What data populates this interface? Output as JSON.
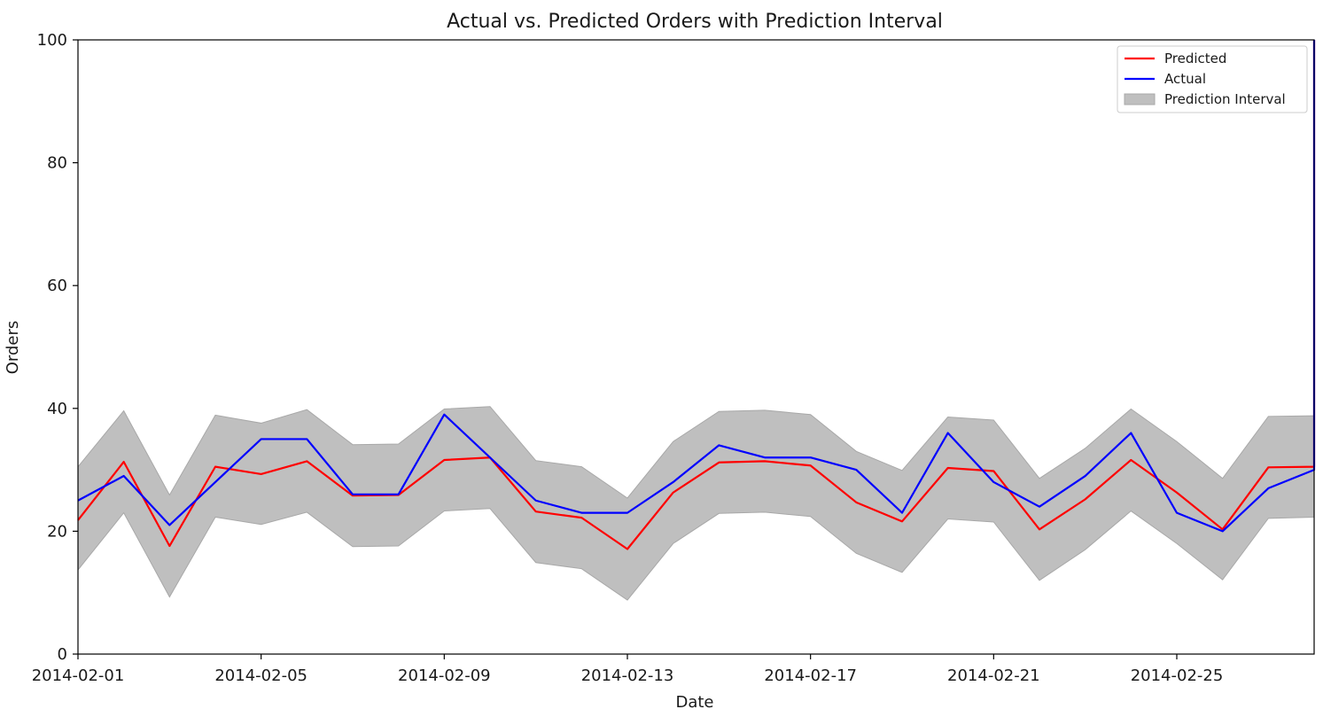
{
  "chart_data": {
    "type": "line",
    "title": "Actual vs. Predicted Orders with Prediction Interval",
    "xlabel": "Date",
    "ylabel": "Orders",
    "x_type": "date",
    "xlim": [
      "2014-02-01",
      "2014-02-28"
    ],
    "ylim": [
      0,
      100
    ],
    "x_ticks": [
      "2014-02-01",
      "2014-02-05",
      "2014-02-09",
      "2014-02-13",
      "2014-02-17",
      "2014-02-21",
      "2014-02-25"
    ],
    "y_ticks": [
      0,
      20,
      40,
      60,
      80,
      100
    ],
    "grid": false,
    "legend_position": "top-right",
    "x": [
      "2014-02-01",
      "2014-02-02",
      "2014-02-03",
      "2014-02-04",
      "2014-02-05",
      "2014-02-06",
      "2014-02-07",
      "2014-02-08",
      "2014-02-09",
      "2014-02-10",
      "2014-02-11",
      "2014-02-12",
      "2014-02-13",
      "2014-02-14",
      "2014-02-15",
      "2014-02-16",
      "2014-02-17",
      "2014-02-18",
      "2014-02-19",
      "2014-02-20",
      "2014-02-21",
      "2014-02-22",
      "2014-02-23",
      "2014-02-24",
      "2014-02-25",
      "2014-02-26",
      "2014-02-27",
      "2014-02-28"
    ],
    "series": [
      {
        "name": "Predicted",
        "color": "#ff0000",
        "values": [
          21.8,
          31.3,
          17.6,
          30.5,
          29.3,
          31.4,
          25.8,
          25.9,
          31.6,
          32.0,
          23.2,
          22.2,
          17.1,
          26.3,
          31.2,
          31.4,
          30.7,
          24.7,
          21.6,
          30.3,
          29.8,
          20.3,
          25.2,
          31.6,
          26.3,
          20.3,
          30.4,
          30.5
        ]
      },
      {
        "name": "Actual",
        "color": "#0000ff",
        "values": [
          25,
          29,
          21,
          28,
          35,
          35,
          26,
          26,
          39,
          32,
          25,
          23,
          23,
          28,
          34,
          32,
          32,
          30,
          23,
          36,
          28,
          24,
          29,
          36,
          23,
          20,
          27,
          30
        ]
      }
    ],
    "interval": {
      "name": "Prediction Interval",
      "color": "#bfbfbf",
      "lower": [
        13.7,
        23.0,
        9.3,
        22.3,
        21.1,
        23.1,
        17.5,
        17.6,
        23.3,
        23.7,
        14.9,
        13.9,
        8.8,
        18.0,
        22.9,
        23.1,
        22.4,
        16.4,
        13.3,
        22.0,
        21.5,
        12.0,
        17.0,
        23.3,
        18.0,
        12.1,
        22.1,
        22.3
      ],
      "upper": [
        30.5,
        39.6,
        25.9,
        38.9,
        37.6,
        39.8,
        34.1,
        34.2,
        39.9,
        40.3,
        31.5,
        30.5,
        25.4,
        34.6,
        39.5,
        39.7,
        39.0,
        33.0,
        29.9,
        38.6,
        38.1,
        28.6,
        33.5,
        39.9,
        34.6,
        28.6,
        38.7,
        38.8
      ]
    },
    "end_spike": {
      "Predicted": 100,
      "Actual": 100
    }
  }
}
